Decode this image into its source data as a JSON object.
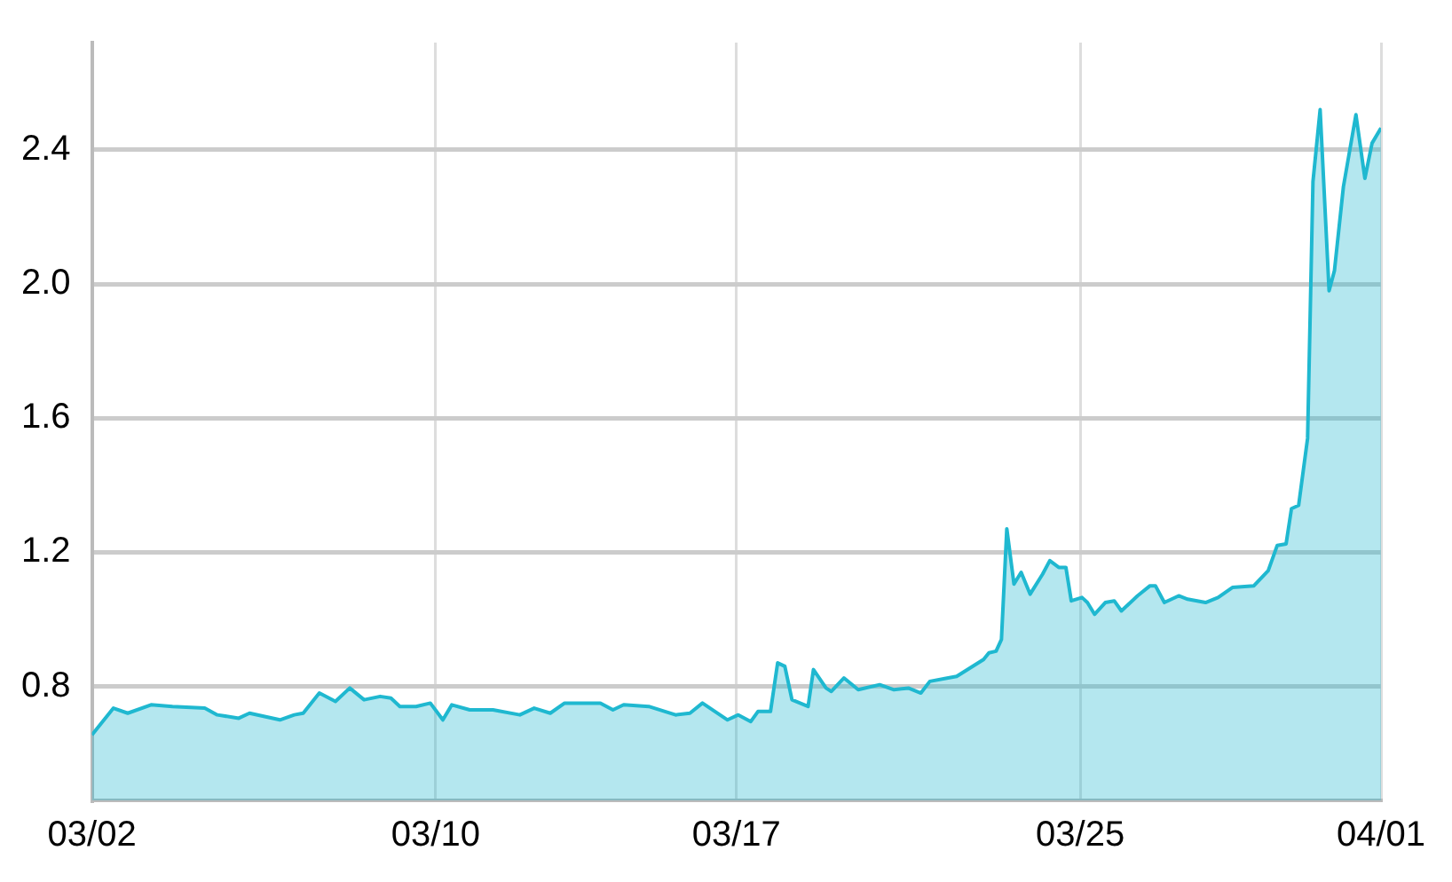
{
  "chart_data": {
    "type": "area",
    "x": [
      "--03-02T00:00",
      "--03-02T12:00",
      "--03-02T20:00",
      "--03-03T09:00",
      "--03-03T21:00",
      "--03-04T15:00",
      "--03-04T22:00",
      "--03-05T10:00",
      "--03-05T16:00",
      "--03-06T09:00",
      "--03-06T17:00",
      "--03-06T22:00",
      "--03-07T07:00",
      "--03-07T16:00",
      "--03-08T00:00",
      "--03-08T08:00",
      "--03-08T17:00",
      "--03-08T23:00",
      "--03-09T04:00",
      "--03-09T13:00",
      "--03-09T21:00",
      "--03-10T04:00",
      "--03-10T09:00",
      "--03-10T19:00",
      "--03-11T08:00",
      "--03-11T23:00",
      "--03-12T07:00",
      "--03-12T16:00",
      "--03-13T00:00",
      "--03-13T20:00",
      "--03-14T03:00",
      "--03-14T09:00",
      "--03-14T23:00",
      "--03-15T14:00",
      "--03-15T22:00",
      "--03-16T05:00",
      "--03-16T12:00",
      "--03-16T19:00",
      "--03-17T01:00",
      "--03-17T08:00",
      "--03-17T12:00",
      "--03-17T19:00",
      "--03-17T23:00",
      "--03-18T03:00",
      "--03-18T07:00",
      "--03-18T16:00",
      "--03-18T19:00",
      "--03-19T02:00",
      "--03-19T05:00",
      "--03-19T12:00",
      "--03-19T20:00",
      "--03-20T08:00",
      "--03-20T16:00",
      "--03-21T00:00",
      "--03-21T07:00",
      "--03-21T12:00",
      "--03-22T03:00",
      "--03-22T18:00",
      "--03-22T21:00",
      "--03-23T01:00",
      "--03-23T04:00",
      "--03-23T07:00",
      "--03-23T11:00",
      "--03-23T15:00",
      "--03-23T20:00",
      "--03-24T03:00",
      "--03-24T07:00",
      "--03-24T12:00",
      "--03-24T16:00",
      "--03-24T19:00",
      "--03-25T01:00",
      "--03-25T04:00",
      "--03-25T08:00",
      "--03-25T14:00",
      "--03-25T19:00",
      "--03-25T23:00",
      "--03-26T08:00",
      "--03-26T15:00",
      "--03-26T18:00",
      "--03-26T23:00",
      "--03-27T07:00",
      "--03-27T12:00",
      "--03-27T22:00",
      "--03-28T05:00",
      "--03-28T13:00",
      "--03-29T01:00",
      "--03-29T09:00",
      "--03-29T14:00",
      "--03-29T19:00",
      "--03-29T22:00",
      "--03-30T02:00",
      "--03-30T07:00",
      "--03-30T10:00",
      "--03-30T14:00",
      "--03-30T19:00",
      "--03-30T22:00",
      "--03-31T03:00",
      "--03-31T10:00",
      "--03-31T15:00",
      "--03-31T19:00",
      "--04-01T00:00"
    ],
    "series": [
      {
        "color": "#1fb8d0",
        "values": [
          0.655,
          0.735,
          0.72,
          0.745,
          0.74,
          0.735,
          0.715,
          0.705,
          0.72,
          0.7,
          0.715,
          0.72,
          0.78,
          0.755,
          0.795,
          0.76,
          0.77,
          0.765,
          0.74,
          0.74,
          0.75,
          0.7,
          0.745,
          0.73,
          0.73,
          0.715,
          0.735,
          0.72,
          0.75,
          0.75,
          0.73,
          0.745,
          0.74,
          0.715,
          0.72,
          0.75,
          0.725,
          0.7,
          0.715,
          0.695,
          0.725,
          0.725,
          0.87,
          0.86,
          0.76,
          0.74,
          0.85,
          0.795,
          0.785,
          0.825,
          0.79,
          0.805,
          0.79,
          0.795,
          0.78,
          0.815,
          0.83,
          0.88,
          0.9,
          0.905,
          0.94,
          1.27,
          1.105,
          1.14,
          1.075,
          1.135,
          1.175,
          1.155,
          1.155,
          1.055,
          1.065,
          1.05,
          1.015,
          1.05,
          1.055,
          1.025,
          1.07,
          1.1,
          1.1,
          1.05,
          1.07,
          1.06,
          1.05,
          1.065,
          1.095,
          1.1,
          1.145,
          1.22,
          1.225,
          1.33,
          1.34,
          1.54,
          2.305,
          2.52,
          1.98,
          2.04,
          2.29,
          2.505,
          2.315,
          2.42,
          2.465
        ]
      }
    ],
    "xlim": [
      "--03-02",
      "--04-01"
    ],
    "xticks": [
      {
        "value": "--03-02",
        "label": "03/02"
      },
      {
        "value": "--03-10",
        "label": "03/10"
      },
      {
        "value": "--03-17",
        "label": "03/17"
      },
      {
        "value": "--03-25",
        "label": "03/25"
      },
      {
        "value": "--04-01",
        "label": "04/01"
      }
    ],
    "ylim": [
      0.46,
      2.72
    ],
    "yticks": [
      0.8,
      1.2,
      1.6,
      {
        "value": 2,
        "label": "2.0"
      },
      2.4
    ],
    "grid": true,
    "legend": false,
    "marker": "none",
    "line_style": "solid"
  }
}
